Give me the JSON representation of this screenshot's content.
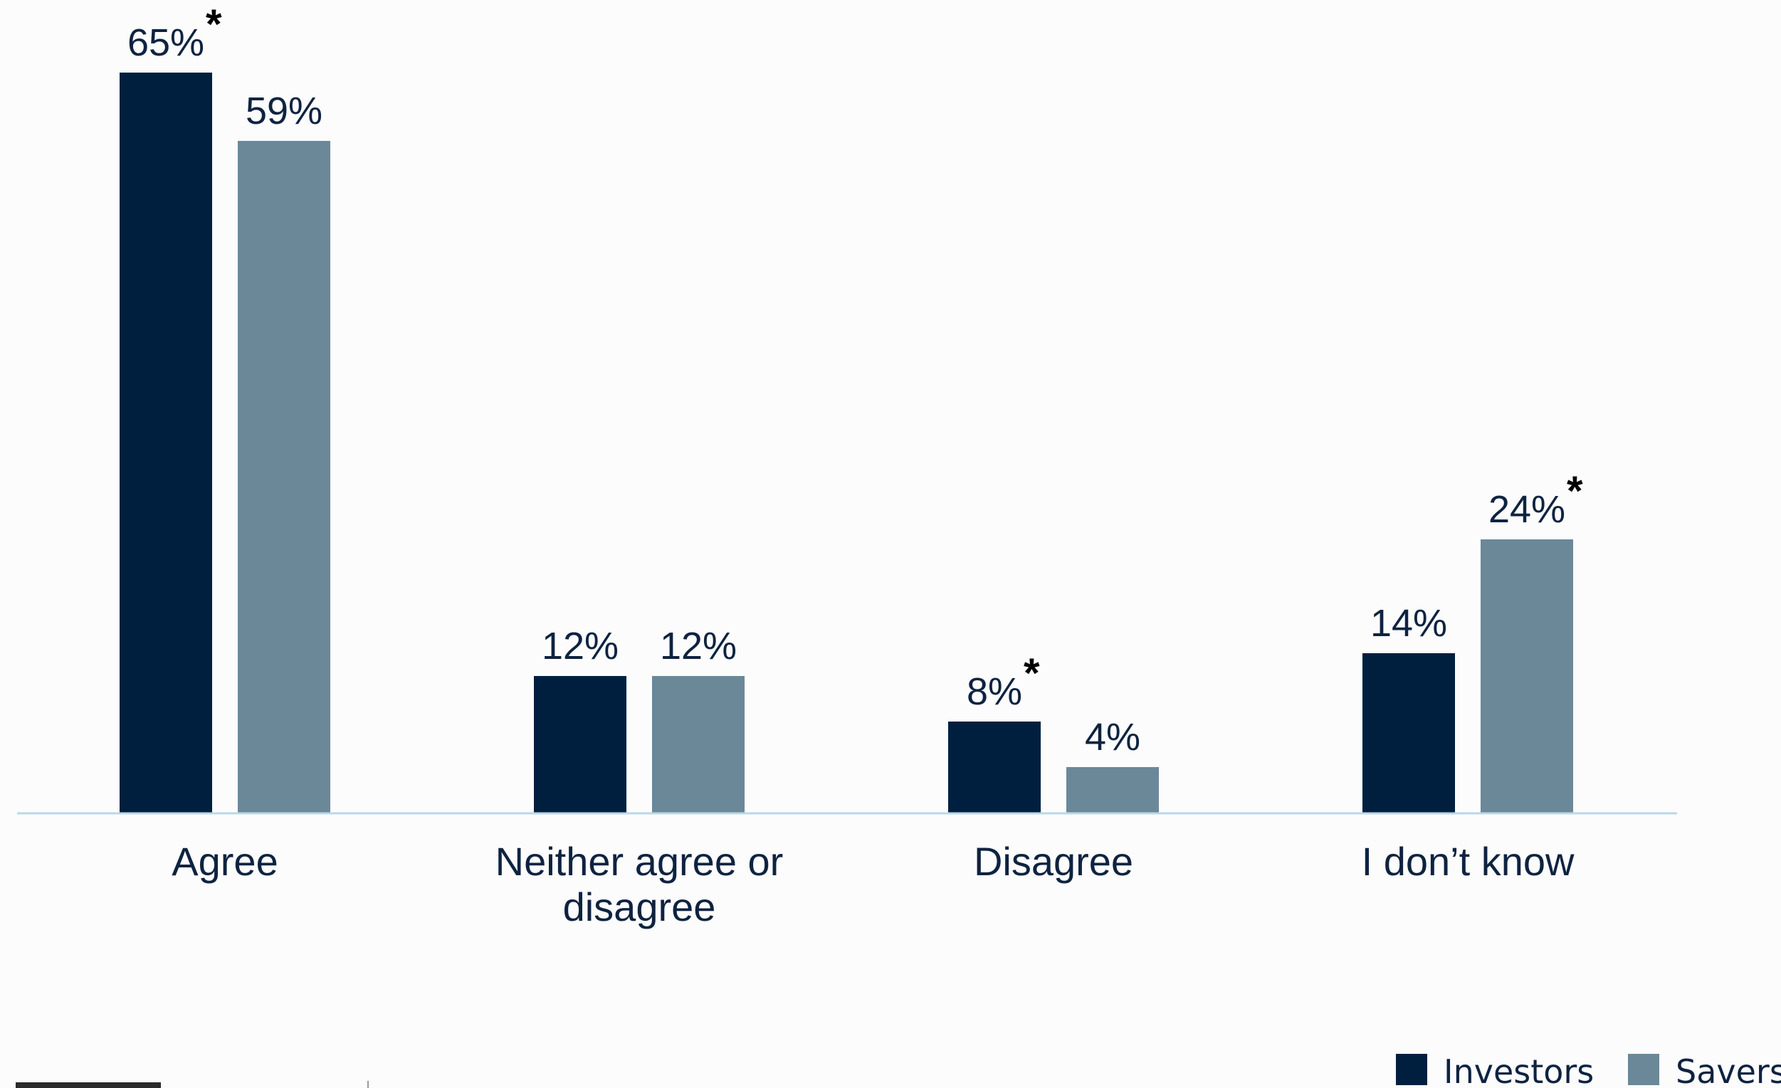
{
  "chart_data": {
    "type": "bar",
    "categories": [
      "Agree",
      "Neither agree or disagree",
      "Disagree",
      "I don’t know"
    ],
    "category_lines": [
      [
        "Agree"
      ],
      [
        "Neither agree or",
        "disagree"
      ],
      [
        "Disagree"
      ],
      [
        "I don’t know"
      ]
    ],
    "series": [
      {
        "name": "Investors",
        "color": "#001f3f",
        "values": [
          65,
          12,
          8,
          14
        ],
        "labels": [
          "65%",
          "12%",
          "8%",
          "14%"
        ],
        "significant": [
          true,
          false,
          true,
          false
        ]
      },
      {
        "name": "Savers",
        "color": "#6b8899",
        "values": [
          59,
          12,
          4,
          24
        ],
        "labels": [
          "59%",
          "12%",
          "4%",
          "24%"
        ],
        "significant": [
          false,
          false,
          false,
          true
        ]
      }
    ],
    "significance_marker": "*",
    "ylim": [
      0,
      70
    ],
    "axis_color": "#bcd7e6",
    "grid": false,
    "legend": {
      "position": "bottom-right",
      "entries": [
        "Investors",
        "Savers"
      ]
    },
    "title": "",
    "xlabel": "",
    "ylabel": ""
  }
}
